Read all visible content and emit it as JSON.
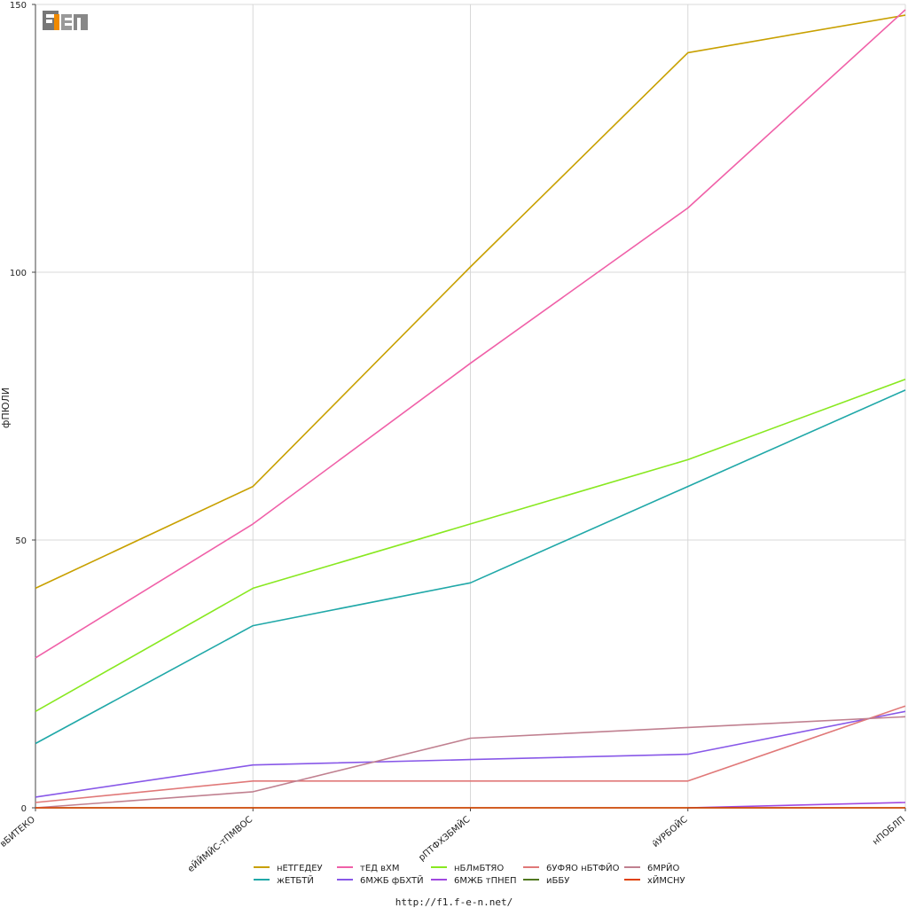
{
  "footer_url": "http://f1.f-e-n.net/",
  "logo_text": "F1EN",
  "chart_data": {
    "type": "line",
    "ylabel": "фПЮЛИ",
    "xlabel": "",
    "ylim": [
      0,
      150
    ],
    "yticks": [
      0,
      50,
      100,
      150
    ],
    "grid": true,
    "legend_position": "bottom",
    "categories": [
      "вБИТЕКО",
      "еЙЙМЙС-тПМВОС",
      "рПТФХЗБМЙС",
      "йУРБОЙС",
      "нПОБЛП"
    ],
    "series": [
      {
        "name": "нЕТГЕДЕУ",
        "color": "#c8a000",
        "values": [
          41,
          60,
          101,
          141,
          148
        ]
      },
      {
        "name": "жЕТБТЙ",
        "color": "#20a8a8",
        "values": [
          12,
          34,
          42,
          60,
          78
        ]
      },
      {
        "name": "тЕД вХМ",
        "color": "#f060a8",
        "values": [
          28,
          53,
          83,
          112,
          149
        ]
      },
      {
        "name": "6МЖБ фБХТЙ",
        "color": "#8858e8",
        "values": [
          2,
          8,
          9,
          10,
          18
        ]
      },
      {
        "name": "нБЛмБТЯО",
        "color": "#88e820",
        "values": [
          18,
          41,
          53,
          65,
          80
        ]
      },
      {
        "name": "6МЖБ тПНЕП",
        "color": "#a048e0",
        "values": [
          null,
          null,
          null,
          0,
          1
        ]
      },
      {
        "name": "6УФЯО нБТФЙО",
        "color": "#e07878",
        "values": [
          1,
          5,
          5,
          5,
          19
        ]
      },
      {
        "name": "иББУ",
        "color": "#507820",
        "values": [
          0,
          0,
          0,
          0,
          0
        ]
      },
      {
        "name": "6МРЙО",
        "color": "#c08090",
        "values": [
          0,
          3,
          13,
          15,
          17
        ]
      },
      {
        "name": "хЙМСНУ",
        "color": "#e04000",
        "values": [
          0,
          0,
          0,
          0,
          0
        ]
      }
    ]
  }
}
